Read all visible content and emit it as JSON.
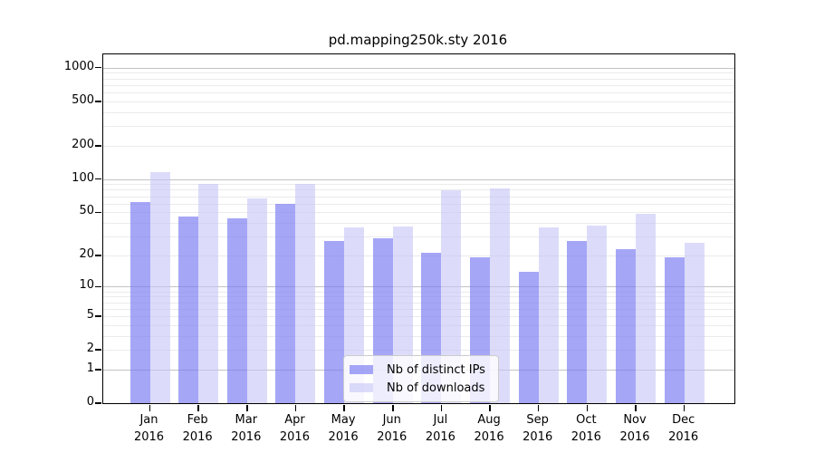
{
  "chart_data": {
    "type": "bar",
    "title": "pd.mapping250k.sty 2016",
    "year": "2016",
    "categories": [
      "Jan",
      "Feb",
      "Mar",
      "Apr",
      "May",
      "Jun",
      "Jul",
      "Aug",
      "Sep",
      "Oct",
      "Nov",
      "Dec"
    ],
    "series": [
      {
        "name": "Nb of distinct IPs",
        "color": "rgba(122,122,243,0.67)",
        "values": [
          62,
          46,
          44,
          60,
          27,
          29,
          21,
          19,
          14,
          27,
          23,
          19
        ]
      },
      {
        "name": "Nb of downloads",
        "color": "rgba(198,198,247,0.62)",
        "values": [
          115,
          90,
          67,
          91,
          36,
          37,
          80,
          83,
          36,
          38,
          48,
          26
        ]
      }
    ],
    "yticks": [
      0,
      1,
      2,
      5,
      10,
      20,
      50,
      100,
      200,
      500,
      1000
    ],
    "y_scale": "log1p",
    "ylim": [
      0,
      1320
    ],
    "grid": true,
    "legend_position": "lower-center",
    "colors": {
      "grid_major": "#c3c3c3",
      "grid_minor": "#ebebeb",
      "spine": "#000000",
      "legend_border": "#cccccc"
    }
  }
}
